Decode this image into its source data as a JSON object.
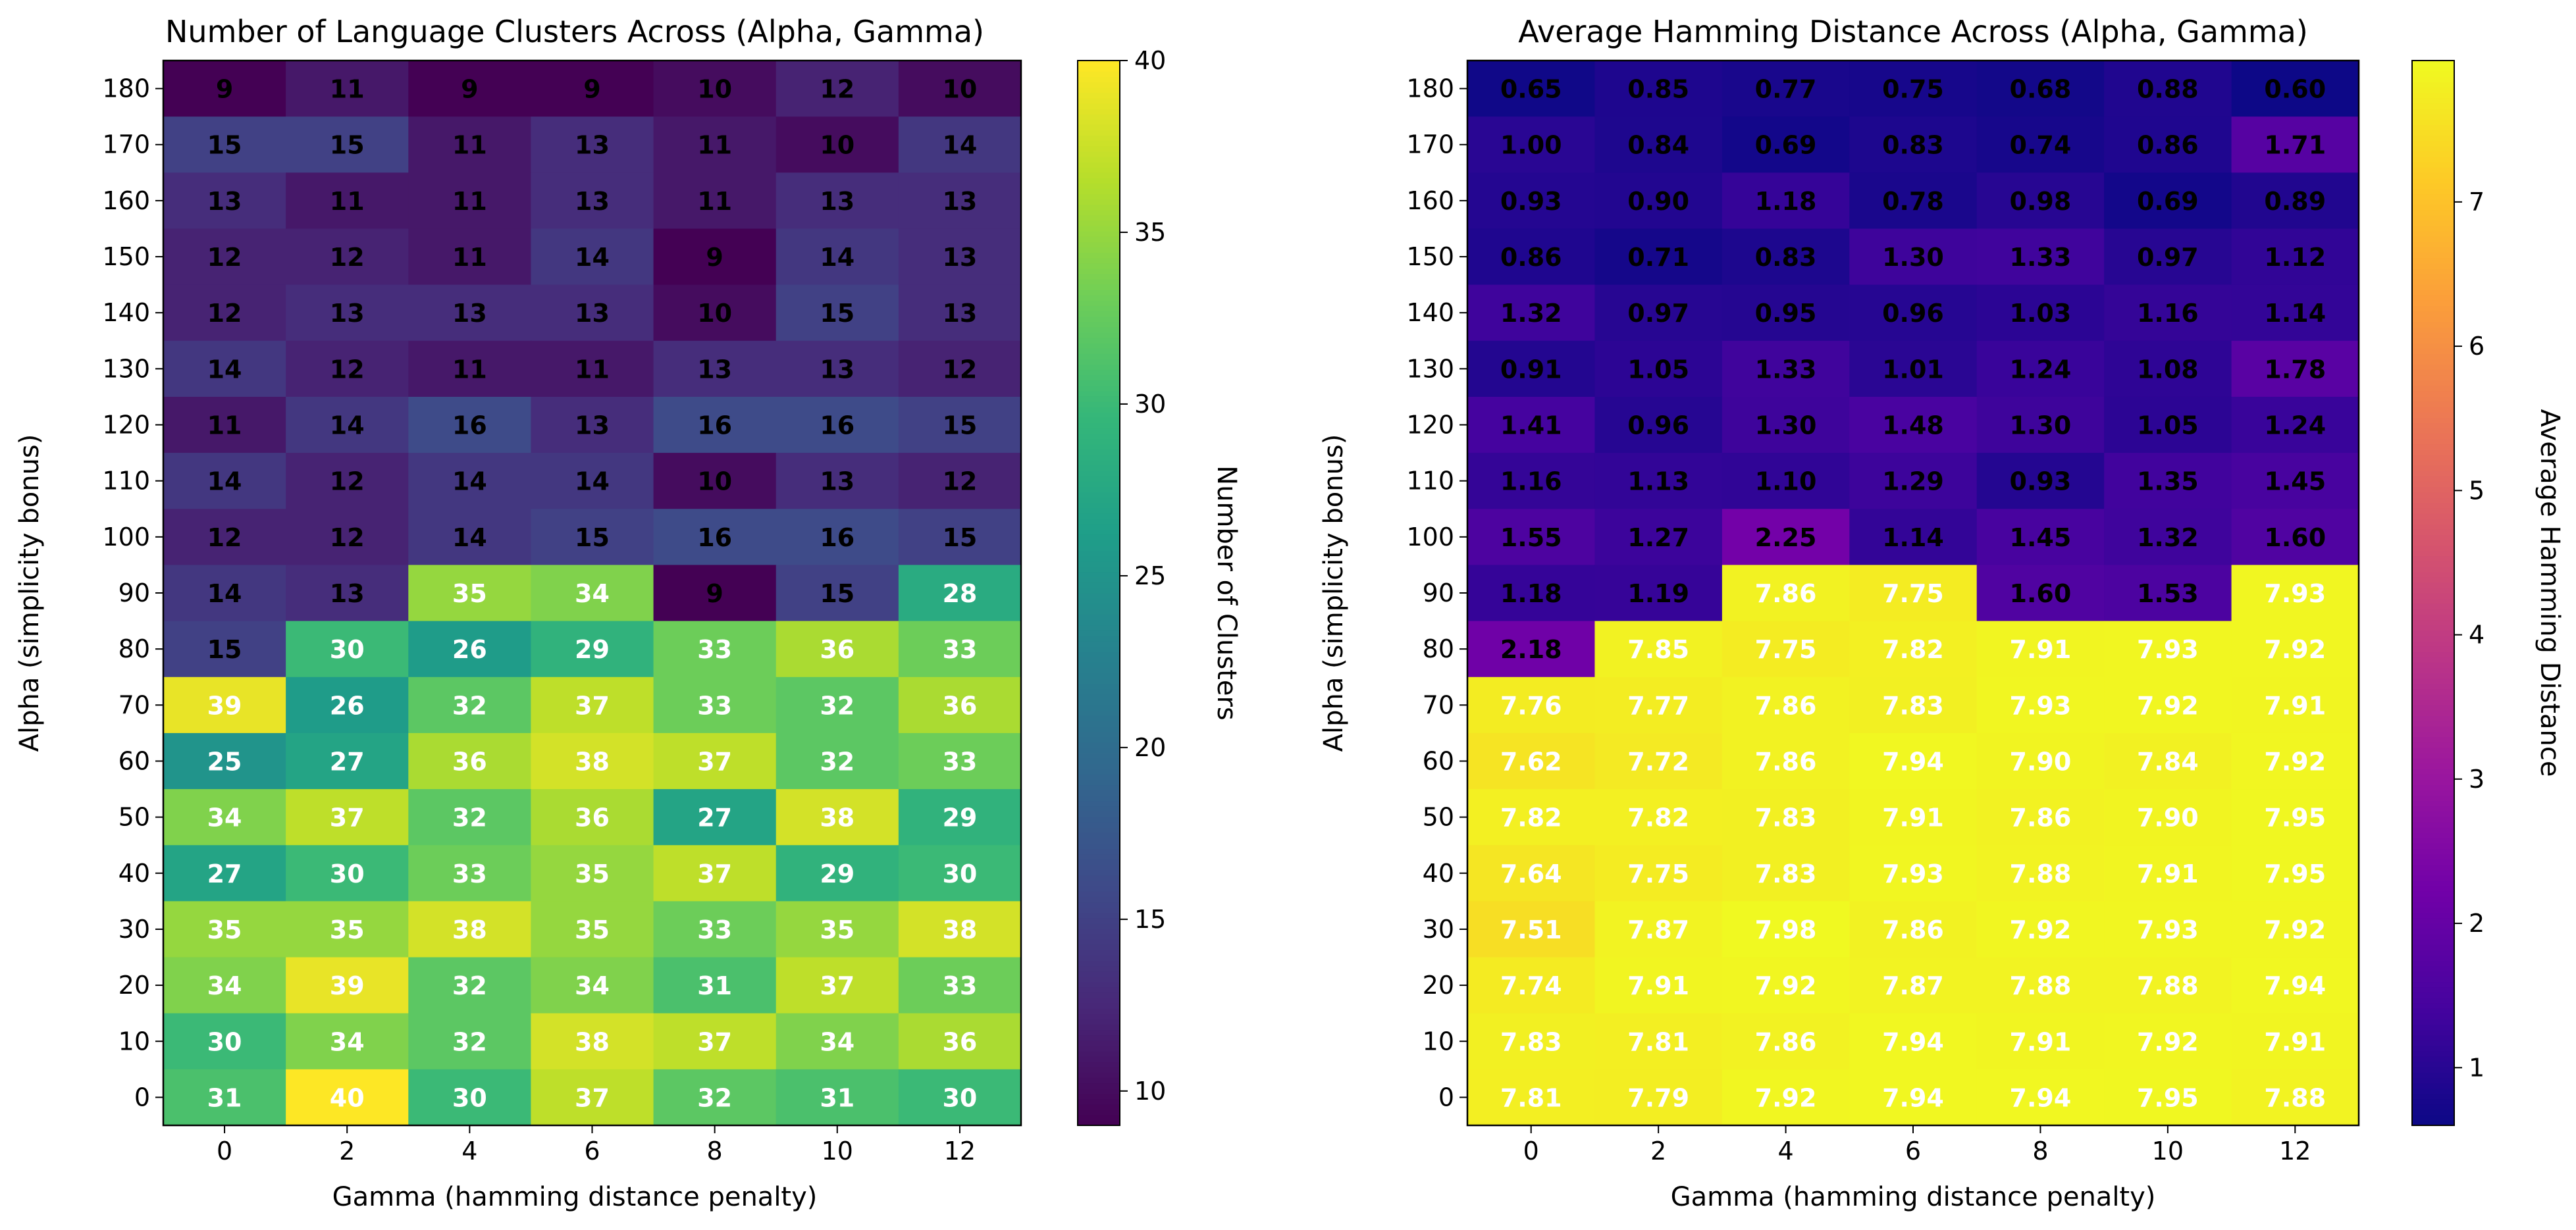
{
  "chart_data": [
    {
      "type": "heatmap",
      "title": "Number of Language Clusters Across (Alpha, Gamma)",
      "xlabel": "Gamma (hamming distance penalty)",
      "ylabel": "Alpha (simplicity bonus)",
      "colorbar_label": "Number of Clusters",
      "colormap": "viridis",
      "x": [
        0,
        2,
        4,
        6,
        8,
        10,
        12
      ],
      "x_ticks": [
        "0",
        "2",
        "4",
        "6",
        "8",
        "10",
        "12"
      ],
      "y": [
        180,
        170,
        160,
        150,
        140,
        130,
        120,
        110,
        100,
        90,
        80,
        70,
        60,
        50,
        40,
        30,
        20,
        10,
        0
      ],
      "y_ticks": [
        "180",
        "170",
        "160",
        "150",
        "140",
        "130",
        "120",
        "110",
        "100",
        "90",
        "80",
        "70",
        "60",
        "50",
        "40",
        "30",
        "20",
        "10",
        "0"
      ],
      "value_range": [
        9,
        40
      ],
      "colorbar_ticks": [
        "10",
        "15",
        "20",
        "25",
        "30",
        "35",
        "40"
      ],
      "values": [
        [
          9,
          11,
          9,
          9,
          10,
          12,
          10
        ],
        [
          15,
          15,
          11,
          13,
          11,
          10,
          14
        ],
        [
          13,
          11,
          11,
          13,
          11,
          13,
          13
        ],
        [
          12,
          12,
          11,
          14,
          9,
          14,
          13
        ],
        [
          12,
          13,
          13,
          13,
          10,
          15,
          13
        ],
        [
          14,
          12,
          11,
          11,
          13,
          13,
          12
        ],
        [
          11,
          14,
          16,
          13,
          16,
          16,
          15
        ],
        [
          14,
          12,
          14,
          14,
          10,
          13,
          12
        ],
        [
          12,
          12,
          14,
          15,
          16,
          16,
          15
        ],
        [
          14,
          13,
          35,
          34,
          9,
          15,
          28
        ],
        [
          15,
          30,
          26,
          29,
          33,
          36,
          33
        ],
        [
          39,
          26,
          32,
          37,
          33,
          32,
          36
        ],
        [
          25,
          27,
          36,
          38,
          37,
          32,
          33
        ],
        [
          34,
          37,
          32,
          36,
          27,
          38,
          29
        ],
        [
          27,
          30,
          33,
          35,
          37,
          29,
          30
        ],
        [
          35,
          35,
          38,
          35,
          33,
          35,
          38
        ],
        [
          34,
          39,
          32,
          34,
          31,
          37,
          33
        ],
        [
          30,
          34,
          32,
          38,
          37,
          34,
          36
        ],
        [
          31,
          40,
          30,
          37,
          32,
          31,
          30
        ]
      ],
      "labels": [
        [
          "9",
          "11",
          "9",
          "9",
          "10",
          "12",
          "10"
        ],
        [
          "15",
          "15",
          "11",
          "13",
          "11",
          "10",
          "14"
        ],
        [
          "13",
          "11",
          "11",
          "13",
          "11",
          "13",
          "13"
        ],
        [
          "12",
          "12",
          "11",
          "14",
          "9",
          "14",
          "13"
        ],
        [
          "12",
          "13",
          "13",
          "13",
          "10",
          "15",
          "13"
        ],
        [
          "14",
          "12",
          "11",
          "11",
          "13",
          "13",
          "12"
        ],
        [
          "11",
          "14",
          "16",
          "13",
          "16",
          "16",
          "15"
        ],
        [
          "14",
          "12",
          "14",
          "14",
          "10",
          "13",
          "12"
        ],
        [
          "12",
          "12",
          "14",
          "15",
          "16",
          "16",
          "15"
        ],
        [
          "14",
          "13",
          "35",
          "34",
          "9",
          "15",
          "28"
        ],
        [
          "15",
          "30",
          "26",
          "29",
          "33",
          "36",
          "33"
        ],
        [
          "39",
          "26",
          "32",
          "37",
          "33",
          "32",
          "36"
        ],
        [
          "25",
          "27",
          "36",
          "38",
          "37",
          "32",
          "33"
        ],
        [
          "34",
          "37",
          "32",
          "36",
          "27",
          "38",
          "29"
        ],
        [
          "27",
          "30",
          "33",
          "35",
          "37",
          "29",
          "30"
        ],
        [
          "35",
          "35",
          "38",
          "35",
          "33",
          "35",
          "38"
        ],
        [
          "34",
          "39",
          "32",
          "34",
          "31",
          "37",
          "33"
        ],
        [
          "30",
          "34",
          "32",
          "38",
          "37",
          "34",
          "36"
        ],
        [
          "31",
          "40",
          "30",
          "37",
          "32",
          "31",
          "30"
        ]
      ],
      "label_threshold": 20,
      "label_color_low": "#000000",
      "label_color_high": "#ffffff"
    },
    {
      "type": "heatmap",
      "title": "Average Hamming Distance Across (Alpha, Gamma)",
      "xlabel": "Gamma (hamming distance penalty)",
      "ylabel": "Alpha (simplicity bonus)",
      "colorbar_label": "Average Hamming Distance",
      "colormap": "plasma",
      "x": [
        0,
        2,
        4,
        6,
        8,
        10,
        12
      ],
      "x_ticks": [
        "0",
        "2",
        "4",
        "6",
        "8",
        "10",
        "12"
      ],
      "y": [
        180,
        170,
        160,
        150,
        140,
        130,
        120,
        110,
        100,
        90,
        80,
        70,
        60,
        50,
        40,
        30,
        20,
        10,
        0
      ],
      "y_ticks": [
        "180",
        "170",
        "160",
        "150",
        "140",
        "130",
        "120",
        "110",
        "100",
        "90",
        "80",
        "70",
        "60",
        "50",
        "40",
        "30",
        "20",
        "10",
        "0"
      ],
      "value_range": [
        0.6,
        7.98
      ],
      "colorbar_ticks": [
        "1",
        "2",
        "3",
        "4",
        "5",
        "6",
        "7"
      ],
      "values": [
        [
          0.65,
          0.85,
          0.77,
          0.75,
          0.68,
          0.88,
          0.6
        ],
        [
          1.0,
          0.84,
          0.69,
          0.83,
          0.74,
          0.86,
          1.71
        ],
        [
          0.93,
          0.9,
          1.18,
          0.78,
          0.98,
          0.69,
          0.89
        ],
        [
          0.86,
          0.71,
          0.83,
          1.3,
          1.33,
          0.97,
          1.12
        ],
        [
          1.32,
          0.97,
          0.95,
          0.96,
          1.03,
          1.16,
          1.14
        ],
        [
          0.91,
          1.05,
          1.33,
          1.01,
          1.24,
          1.08,
          1.78
        ],
        [
          1.41,
          0.96,
          1.3,
          1.48,
          1.3,
          1.05,
          1.24
        ],
        [
          1.16,
          1.13,
          1.1,
          1.29,
          0.93,
          1.35,
          1.45
        ],
        [
          1.55,
          1.27,
          2.25,
          1.14,
          1.45,
          1.32,
          1.6
        ],
        [
          1.18,
          1.19,
          7.86,
          7.75,
          1.6,
          1.53,
          7.93
        ],
        [
          2.18,
          7.85,
          7.75,
          7.82,
          7.91,
          7.93,
          7.92
        ],
        [
          7.76,
          7.77,
          7.86,
          7.83,
          7.93,
          7.92,
          7.91
        ],
        [
          7.62,
          7.72,
          7.86,
          7.94,
          7.9,
          7.84,
          7.92
        ],
        [
          7.82,
          7.82,
          7.83,
          7.91,
          7.86,
          7.9,
          7.95
        ],
        [
          7.64,
          7.75,
          7.83,
          7.93,
          7.88,
          7.91,
          7.95
        ],
        [
          7.51,
          7.87,
          7.98,
          7.86,
          7.92,
          7.93,
          7.92
        ],
        [
          7.74,
          7.91,
          7.92,
          7.87,
          7.88,
          7.88,
          7.94
        ],
        [
          7.83,
          7.81,
          7.86,
          7.94,
          7.91,
          7.92,
          7.91
        ],
        [
          7.81,
          7.79,
          7.92,
          7.94,
          7.94,
          7.95,
          7.88
        ]
      ],
      "labels": [
        [
          "0.65",
          "0.85",
          "0.77",
          "0.75",
          "0.68",
          "0.88",
          "0.60"
        ],
        [
          "1.00",
          "0.84",
          "0.69",
          "0.83",
          "0.74",
          "0.86",
          "1.71"
        ],
        [
          "0.93",
          "0.90",
          "1.18",
          "0.78",
          "0.98",
          "0.69",
          "0.89"
        ],
        [
          "0.86",
          "0.71",
          "0.83",
          "1.30",
          "1.33",
          "0.97",
          "1.12"
        ],
        [
          "1.32",
          "0.97",
          "0.95",
          "0.96",
          "1.03",
          "1.16",
          "1.14"
        ],
        [
          "0.91",
          "1.05",
          "1.33",
          "1.01",
          "1.24",
          "1.08",
          "1.78"
        ],
        [
          "1.41",
          "0.96",
          "1.30",
          "1.48",
          "1.30",
          "1.05",
          "1.24"
        ],
        [
          "1.16",
          "1.13",
          "1.10",
          "1.29",
          "0.93",
          "1.35",
          "1.45"
        ],
        [
          "1.55",
          "1.27",
          "2.25",
          "1.14",
          "1.45",
          "1.32",
          "1.60"
        ],
        [
          "1.18",
          "1.19",
          "7.86",
          "7.75",
          "1.60",
          "1.53",
          "7.93"
        ],
        [
          "2.18",
          "7.85",
          "7.75",
          "7.82",
          "7.91",
          "7.93",
          "7.92"
        ],
        [
          "7.76",
          "7.77",
          "7.86",
          "7.83",
          "7.93",
          "7.92",
          "7.91"
        ],
        [
          "7.62",
          "7.72",
          "7.86",
          "7.94",
          "7.90",
          "7.84",
          "7.92"
        ],
        [
          "7.82",
          "7.82",
          "7.83",
          "7.91",
          "7.86",
          "7.90",
          "7.95"
        ],
        [
          "7.64",
          "7.75",
          "7.83",
          "7.93",
          "7.88",
          "7.91",
          "7.95"
        ],
        [
          "7.51",
          "7.87",
          "7.98",
          "7.86",
          "7.92",
          "7.93",
          "7.92"
        ],
        [
          "7.74",
          "7.91",
          "7.92",
          "7.87",
          "7.88",
          "7.88",
          "7.94"
        ],
        [
          "7.83",
          "7.81",
          "7.86",
          "7.94",
          "7.91",
          "7.92",
          "7.91"
        ],
        [
          "7.81",
          "7.79",
          "7.92",
          "7.94",
          "7.94",
          "7.95",
          "7.88"
        ]
      ],
      "label_threshold": 3,
      "label_color_low": "#000000",
      "label_color_high": "#ffffff"
    }
  ]
}
